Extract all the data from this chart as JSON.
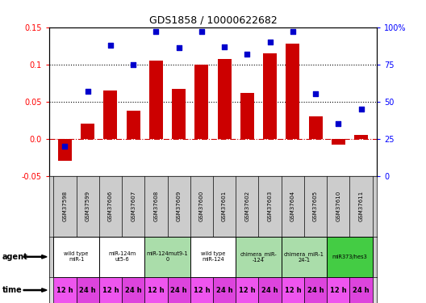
{
  "title": "GDS1858 / 10000622682",
  "samples": [
    "GSM37598",
    "GSM37599",
    "GSM37606",
    "GSM37607",
    "GSM37608",
    "GSM37609",
    "GSM37600",
    "GSM37601",
    "GSM37602",
    "GSM37603",
    "GSM37604",
    "GSM37605",
    "GSM37610",
    "GSM37611"
  ],
  "log10_ratio": [
    -0.03,
    0.02,
    0.065,
    0.038,
    0.105,
    0.067,
    0.1,
    0.107,
    0.062,
    0.115,
    0.128,
    0.03,
    -0.008,
    0.005
  ],
  "percentile_rank": [
    20,
    57,
    88,
    75,
    97,
    86,
    97,
    87,
    82,
    90,
    97,
    55,
    35,
    45
  ],
  "ylim_left": [
    -0.05,
    0.15
  ],
  "ylim_right": [
    0,
    100
  ],
  "yticks_left": [
    -0.05,
    0.0,
    0.05,
    0.1,
    0.15
  ],
  "yticks_right": [
    0,
    25,
    50,
    75,
    100
  ],
  "bar_color": "#cc0000",
  "dot_color": "#0000cc",
  "agent_groups": [
    {
      "label": "wild type\nmiR-1",
      "span": [
        0,
        2
      ],
      "color": "#ffffff"
    },
    {
      "label": "miR-124m\nut5-6",
      "span": [
        2,
        4
      ],
      "color": "#ffffff"
    },
    {
      "label": "miR-124mut9-1\n0",
      "span": [
        4,
        6
      ],
      "color": "#aaddaa"
    },
    {
      "label": "wild type\nmiR-124",
      "span": [
        6,
        8
      ],
      "color": "#ffffff"
    },
    {
      "label": "chimera_miR-\n-124",
      "span": [
        8,
        10
      ],
      "color": "#aaddaa"
    },
    {
      "label": "chimera_miR-1\n24-1",
      "span": [
        10,
        12
      ],
      "color": "#aaddaa"
    },
    {
      "label": "miR373/hes3",
      "span": [
        12,
        14
      ],
      "color": "#44cc44"
    }
  ],
  "time_labels": [
    "12 h",
    "24 h",
    "12 h",
    "24 h",
    "12 h",
    "24 h",
    "12 h",
    "24 h",
    "12 h",
    "24 h",
    "12 h",
    "24 h",
    "12 h",
    "24 h"
  ],
  "dotted_lines": [
    0.05,
    0.1
  ],
  "zero_line_color": "#cc0000",
  "bg_color": "#ffffff",
  "sample_bg": "#cccccc",
  "time_color_odd": "#ee55ee",
  "time_color_even": "#dd44dd"
}
